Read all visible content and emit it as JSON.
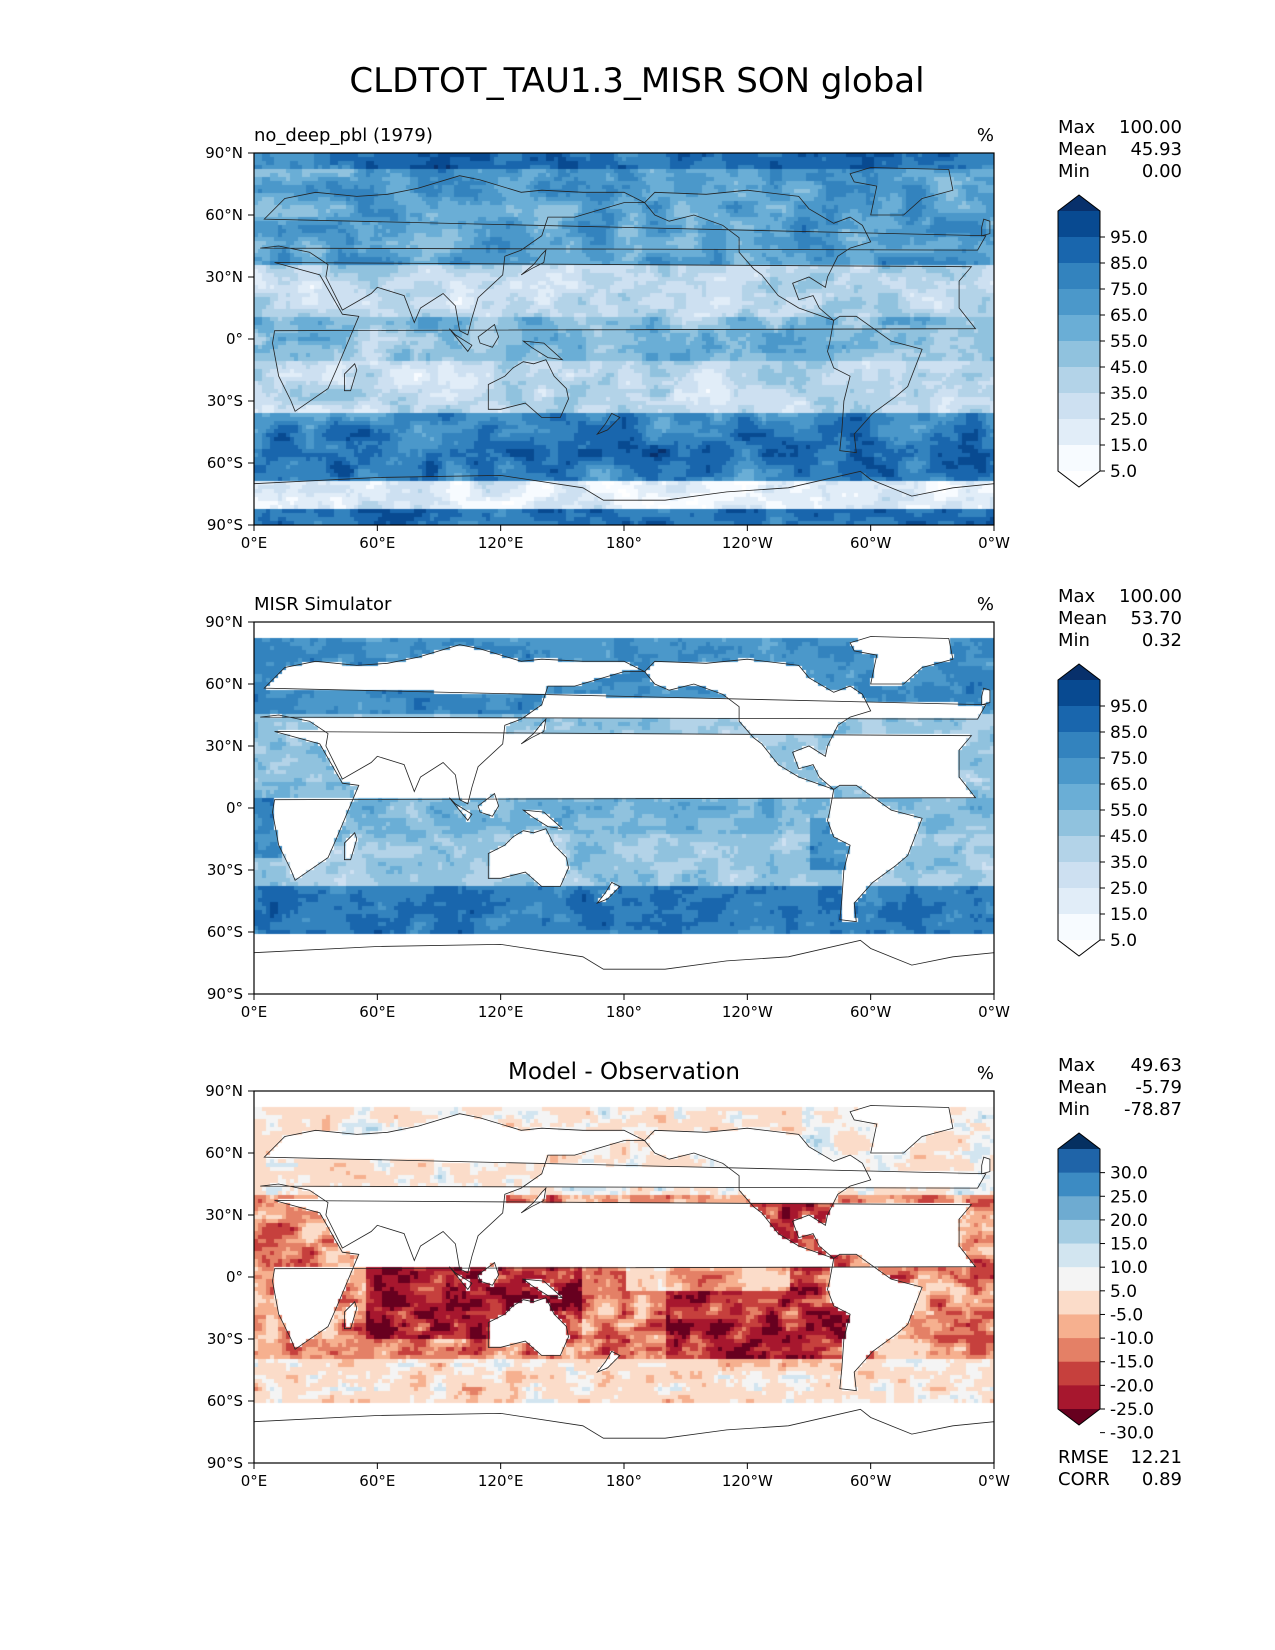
{
  "figure": {
    "title": "CLDTOT_TAU1.3_MISR SON global"
  },
  "panels": [
    {
      "id": "model",
      "left_title": "no_deep_pbl (1979)",
      "center_title": "",
      "units": "%",
      "stats": [
        {
          "label": "Max",
          "value": "100.00"
        },
        {
          "label": "Mean",
          "value": "45.93"
        },
        {
          "label": "Min",
          "value": "0.00"
        }
      ],
      "extra_stats": [],
      "colorbar": {
        "labels": [
          "95.0",
          "85.0",
          "75.0",
          "65.0",
          "55.0",
          "45.0",
          "35.0",
          "25.0",
          "15.0",
          "5.0"
        ],
        "colors": [
          "#08306b",
          "#084a91",
          "#1966ad",
          "#3383be",
          "#4b98ca",
          "#6aaed6",
          "#90c2de",
          "#b3d3e8",
          "#cde0f1",
          "#e1edf8",
          "#f7fbff",
          "#ffffff"
        ]
      }
    },
    {
      "id": "obs",
      "left_title": "MISR Simulator",
      "center_title": "",
      "units": "%",
      "stats": [
        {
          "label": "Max",
          "value": "100.00"
        },
        {
          "label": "Mean",
          "value": "53.70"
        },
        {
          "label": "Min",
          "value": "0.32"
        }
      ],
      "extra_stats": [],
      "colorbar": {
        "labels": [
          "95.0",
          "85.0",
          "75.0",
          "65.0",
          "55.0",
          "45.0",
          "35.0",
          "25.0",
          "15.0",
          "5.0"
        ],
        "colors": [
          "#08306b",
          "#084a91",
          "#1966ad",
          "#3383be",
          "#4b98ca",
          "#6aaed6",
          "#90c2de",
          "#b3d3e8",
          "#cde0f1",
          "#e1edf8",
          "#f7fbff",
          "#ffffff"
        ]
      }
    },
    {
      "id": "diff",
      "left_title": "",
      "center_title": "Model - Observation",
      "units": "%",
      "stats": [
        {
          "label": "Max",
          "value": "49.63"
        },
        {
          "label": "Mean",
          "value": "-5.79"
        },
        {
          "label": "Min",
          "value": "-78.87"
        }
      ],
      "extra_stats": [
        {
          "label": "RMSE",
          "value": "12.21"
        },
        {
          "label": "CORR",
          "value": "0.89"
        }
      ],
      "colorbar": {
        "labels": [
          "30.0",
          "25.0",
          "20.0",
          "15.0",
          "10.0",
          "5.0",
          "-5.0",
          "-10.0",
          "-15.0",
          "-20.0",
          "-25.0",
          "-30.0"
        ],
        "colors": [
          "#053061",
          "#1f64a8",
          "#3c8bc3",
          "#6eabd1",
          "#a5cde3",
          "#d2e5f0",
          "#f4f4f4",
          "#fbdcc9",
          "#f6b08f",
          "#e48066",
          "#c6403d",
          "#a7172e",
          "#67001f"
        ]
      }
    }
  ],
  "axes": {
    "x_ticks": [
      "0°E",
      "60°E",
      "120°E",
      "180°",
      "120°W",
      "60°W",
      "0°W"
    ],
    "y_ticks": [
      "90°N",
      "60°N",
      "30°N",
      "0°",
      "30°S",
      "60°S",
      "90°S"
    ]
  }
}
